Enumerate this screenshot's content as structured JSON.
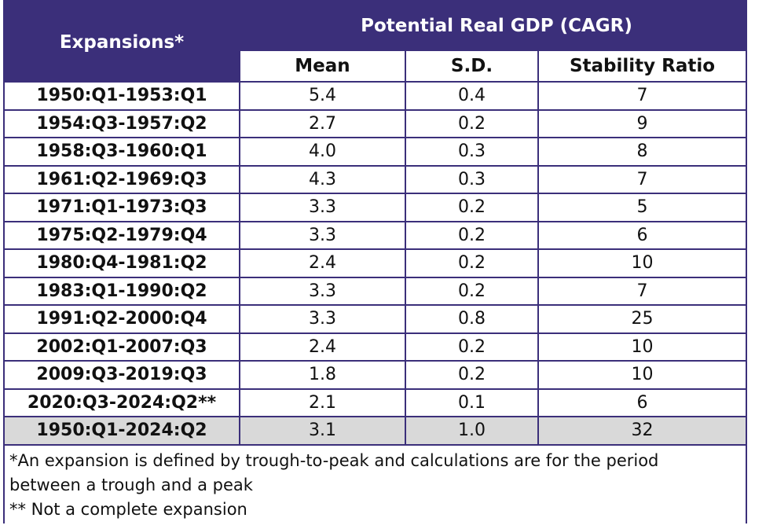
{
  "chart_data": {
    "type": "table",
    "title": "Potential Real GDP (CAGR)",
    "row_header": "Expansions*",
    "columns": [
      "Mean",
      "S.D.",
      "Stability Ratio"
    ],
    "rows": [
      {
        "expansion": "1950:Q1-1953:Q1",
        "mean": "5.4",
        "sd": "0.4",
        "ratio": "7"
      },
      {
        "expansion": "1954:Q3-1957:Q2",
        "mean": "2.7",
        "sd": "0.2",
        "ratio": "9"
      },
      {
        "expansion": "1958:Q3-1960:Q1",
        "mean": "4.0",
        "sd": "0.3",
        "ratio": "8"
      },
      {
        "expansion": "1961:Q2-1969:Q3",
        "mean": "4.3",
        "sd": "0.3",
        "ratio": "7"
      },
      {
        "expansion": "1971:Q1-1973:Q3",
        "mean": "3.3",
        "sd": "0.2",
        "ratio": "5"
      },
      {
        "expansion": "1975:Q2-1979:Q4",
        "mean": "3.3",
        "sd": "0.2",
        "ratio": "6"
      },
      {
        "expansion": "1980:Q4-1981:Q2",
        "mean": "2.4",
        "sd": "0.2",
        "ratio": "10"
      },
      {
        "expansion": "1983:Q1-1990:Q2",
        "mean": "3.3",
        "sd": "0.2",
        "ratio": "7"
      },
      {
        "expansion": "1991:Q2-2000:Q4",
        "mean": "3.3",
        "sd": "0.8",
        "ratio": "25"
      },
      {
        "expansion": "2002:Q1-2007:Q3",
        "mean": "2.4",
        "sd": "0.2",
        "ratio": "10"
      },
      {
        "expansion": "2009:Q3-2019:Q3",
        "mean": "1.8",
        "sd": "0.2",
        "ratio": "10"
      },
      {
        "expansion": "2020:Q3-2024:Q2**",
        "mean": "2.1",
        "sd": "0.1",
        "ratio": "6"
      }
    ],
    "total": {
      "expansion": "1950:Q1-2024:Q2",
      "mean": "3.1",
      "sd": "1.0",
      "ratio": "32"
    },
    "notes": [
      "*An expansion is defined by trough-to-peak and calculations are for the period",
      "between a trough and a peak",
      "** Not a complete expansion"
    ]
  },
  "colors": {
    "header_bg": "#3b2f7a",
    "header_text": "#ffffff",
    "border": "#3b2f7a",
    "total_row_bg": "#d9d9d9"
  }
}
